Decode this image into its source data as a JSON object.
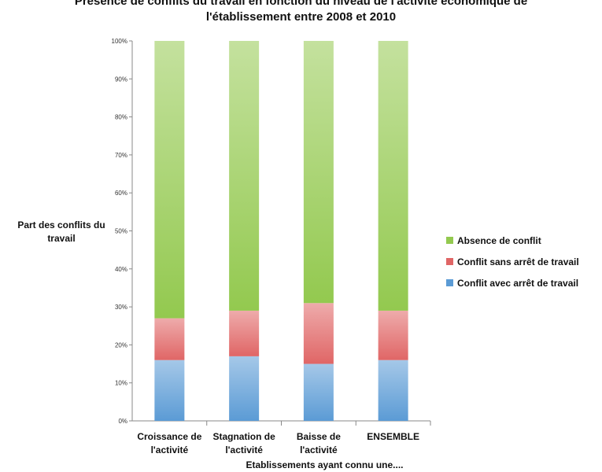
{
  "chart_data": {
    "type": "bar",
    "stacked": true,
    "title_lines": [
      "Présence de conflits du travail en fonction du niveau de l'activité économique de",
      "l'établissement entre 2008 et 2010"
    ],
    "xlabel": "Etablissements ayant connu une....",
    "ylabel": "Part des conflits du travail",
    "ylim": [
      0,
      100
    ],
    "yticks": [
      "0%",
      "10%",
      "20%",
      "30%",
      "40%",
      "50%",
      "60%",
      "70%",
      "80%",
      "90%",
      "100%"
    ],
    "categories": [
      [
        "Croissance de",
        "l'activité"
      ],
      [
        "Stagnation de",
        "l'activité"
      ],
      [
        "Baisse de",
        "l'activité"
      ],
      [
        "ENSEMBLE"
      ]
    ],
    "series": [
      {
        "name": "Conflit avec arrêt de travail",
        "values": [
          16,
          17,
          15,
          16
        ],
        "color": "#5b9bd5"
      },
      {
        "name": "Conflit sans arrêt de travail",
        "values": [
          11,
          12,
          16,
          13
        ],
        "color": "#e06666"
      },
      {
        "name": "Absence de conflit",
        "values": [
          73,
          71,
          69,
          71
        ],
        "color": "#93c94f"
      }
    ],
    "legend_position": "right",
    "grid": false
  }
}
